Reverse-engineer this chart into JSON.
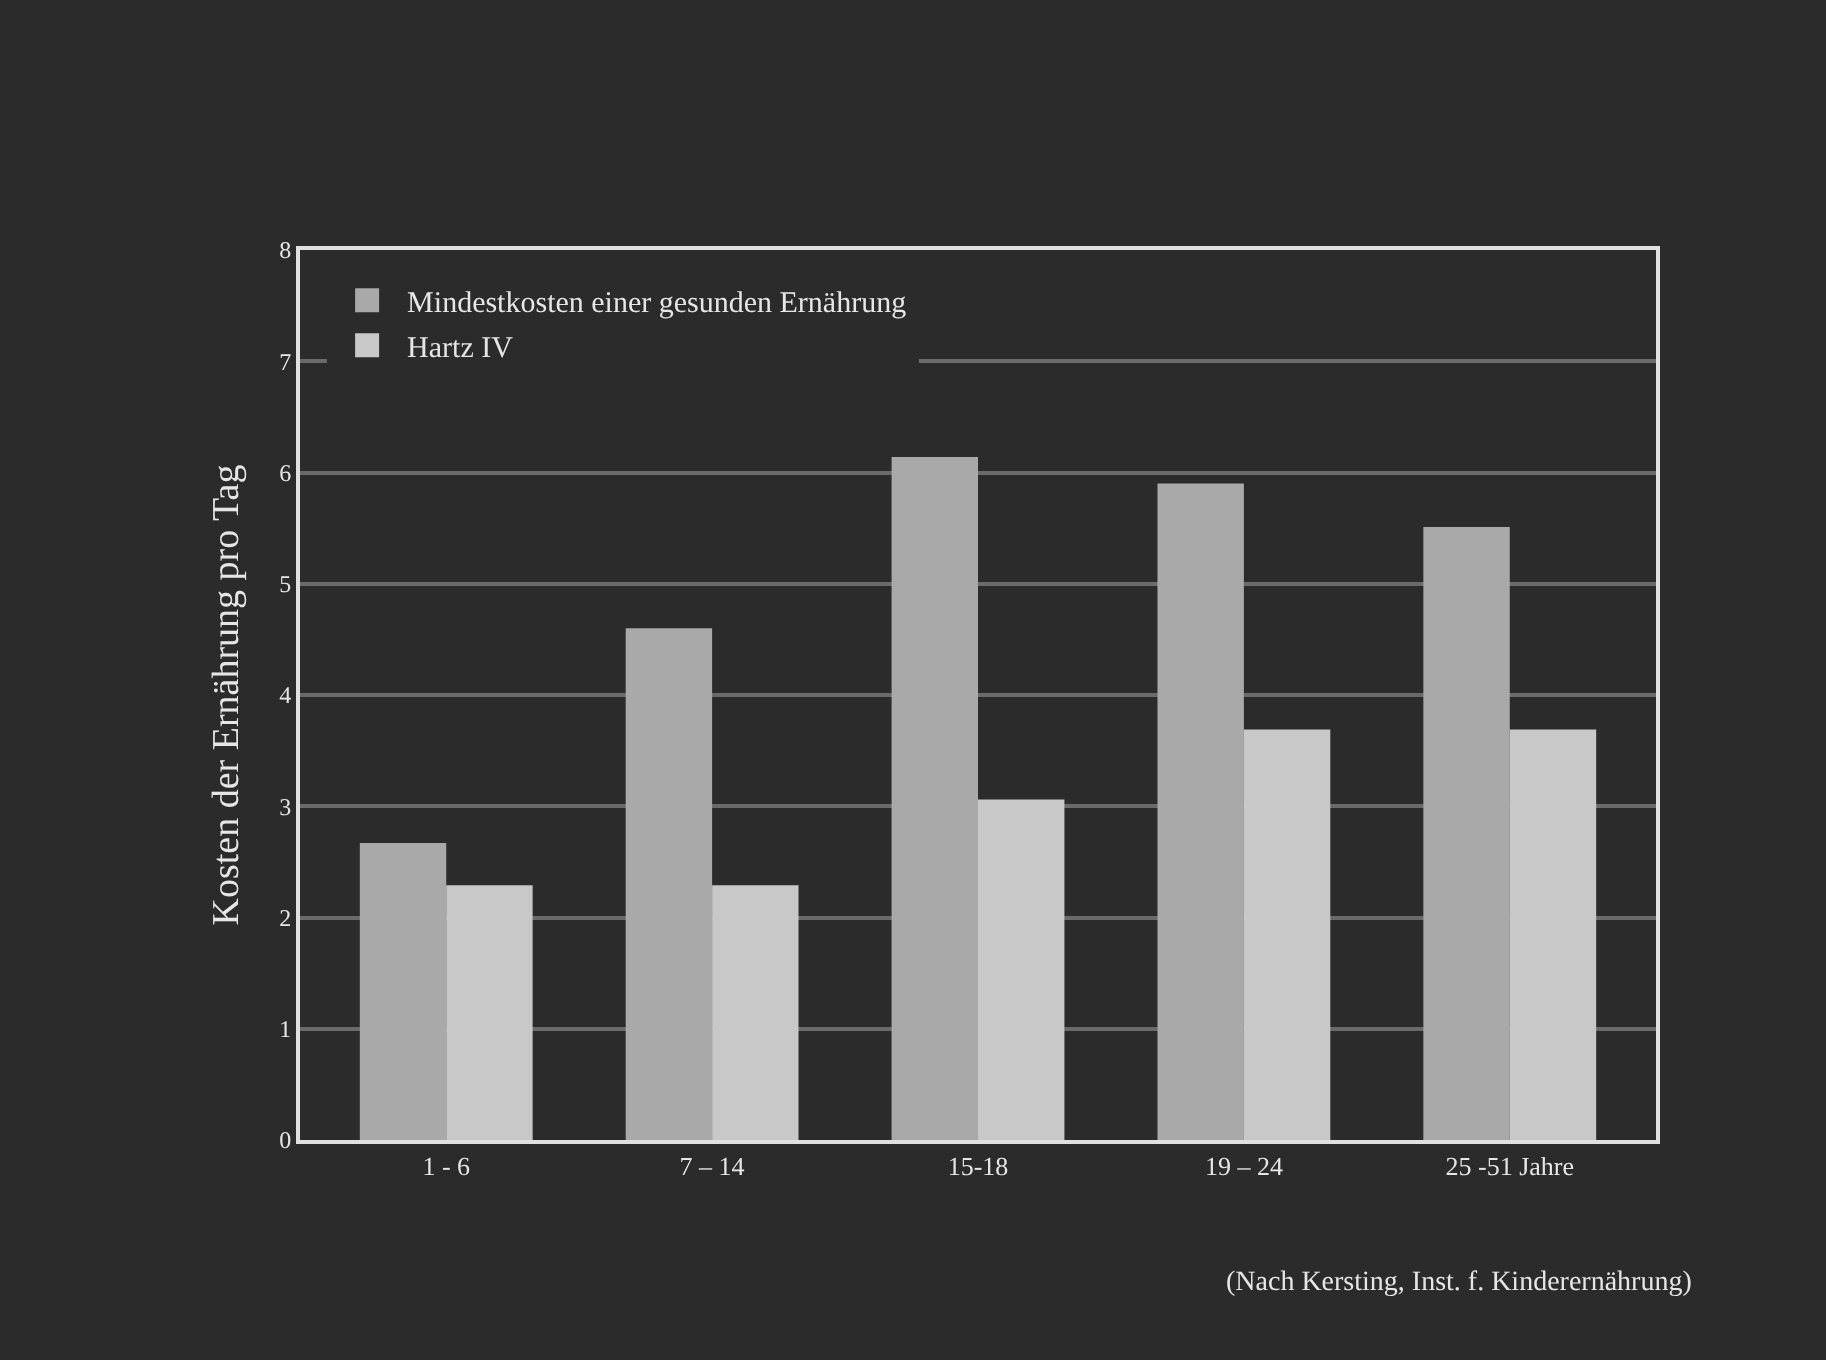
{
  "chart_data": {
    "type": "bar",
    "ylabel": "Kosten der Ernährung pro Tag",
    "categories": [
      "1 - 6",
      "7 – 14",
      "15-18",
      "19 – 24",
      "25 -51 Jahre"
    ],
    "series": [
      {
        "name": "Mindestkosten einer gesunden Ernährung",
        "color": "#a9a9a9",
        "values": [
          2.67,
          4.6,
          6.14,
          5.9,
          5.51
        ]
      },
      {
        "name": "Hartz IV",
        "color": "#c8c8c8",
        "values": [
          2.29,
          2.29,
          3.06,
          3.69,
          3.69
        ]
      }
    ],
    "ylim": [
      0,
      8
    ],
    "yticks": [
      0,
      1,
      2,
      3,
      4,
      5,
      6,
      7,
      8
    ],
    "grid": "y",
    "legend": "top left",
    "annotations": [
      "(Nach Kersting, Inst. f. Kinderernährung)"
    ]
  }
}
